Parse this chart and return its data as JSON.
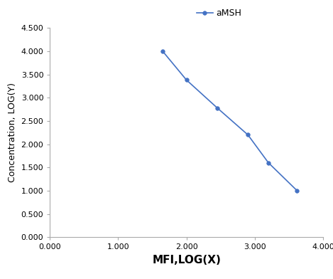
{
  "x": [
    1.65,
    2.0,
    2.45,
    2.9,
    3.2,
    3.62
  ],
  "y": [
    4.0,
    3.38,
    2.78,
    2.2,
    1.6,
    1.0
  ],
  "line_color": "#4472C4",
  "marker": "o",
  "marker_size": 4,
  "legend_label": "aMSH",
  "xlabel": "MFI,LOG(X)",
  "ylabel": "Concentration, LOG(Y)",
  "xlim": [
    0.0,
    4.0
  ],
  "ylim": [
    0.0,
    4.5
  ],
  "xticks": [
    0.0,
    1.0,
    2.0,
    3.0,
    4.0
  ],
  "yticks": [
    0.0,
    0.5,
    1.0,
    1.5,
    2.0,
    2.5,
    3.0,
    3.5,
    4.0,
    4.5
  ],
  "xtick_labels": [
    "0.000",
    "1.000",
    "2.000",
    "3.000",
    "4.000"
  ],
  "ytick_labels": [
    "0.000",
    "0.500",
    "1.000",
    "1.500",
    "2.000",
    "2.500",
    "3.000",
    "3.500",
    "4.000",
    "4.500"
  ],
  "xlabel_fontsize": 11,
  "ylabel_fontsize": 9,
  "tick_fontsize": 8,
  "legend_fontsize": 9,
  "background_color": "#ffffff",
  "spine_color": "#aaaaaa"
}
